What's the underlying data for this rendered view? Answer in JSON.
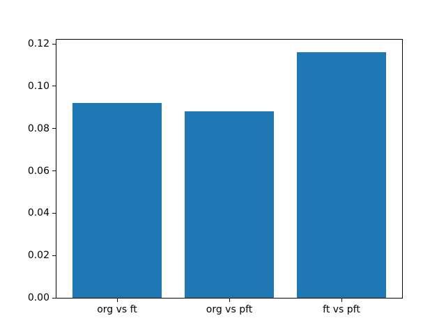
{
  "chart_data": {
    "type": "bar",
    "categories": [
      "org vs ft",
      "org vs pft",
      "ft vs pft"
    ],
    "values": [
      0.092,
      0.088,
      0.116
    ],
    "title": "",
    "xlabel": "",
    "ylabel": "",
    "ylim": [
      0,
      0.122
    ],
    "yticks": [
      0.0,
      0.02,
      0.04,
      0.06,
      0.08,
      0.1,
      0.12
    ],
    "ytick_labels": [
      "0.00",
      "0.02",
      "0.04",
      "0.06",
      "0.08",
      "0.10",
      "0.12"
    ],
    "bar_width_fraction": 0.8,
    "grid": false,
    "legend": null
  },
  "colors": {
    "bar": "#1f77b4",
    "spine": "#000000",
    "text": "#000000",
    "background": "#ffffff"
  }
}
